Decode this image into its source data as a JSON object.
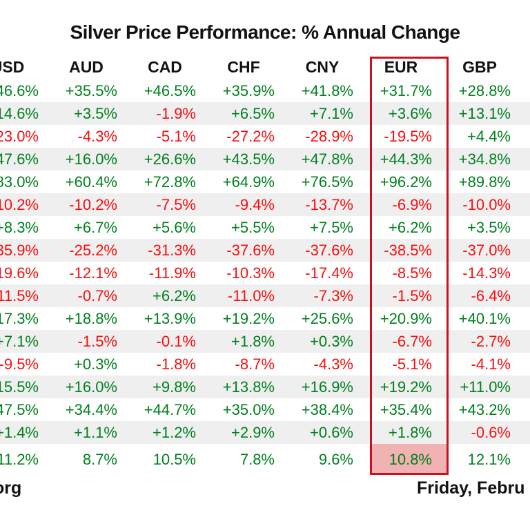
{
  "chart_data": {
    "type": "table",
    "title": "Silver Price Performance: % Annual Change",
    "columns": [
      "USD",
      "AUD",
      "CAD",
      "CHF",
      "CNY",
      "EUR",
      "GBP"
    ],
    "highlighted_column": "EUR",
    "highlight_cell": {
      "row": 16,
      "col": 5
    },
    "rows": [
      {
        "values": [
          "46.6%",
          "+35.5%",
          "+46.5%",
          "+35.9%",
          "+41.8%",
          "+31.7%",
          "+28.8%"
        ],
        "colors": [
          "g",
          "g",
          "g",
          "g",
          "g",
          "g",
          "g"
        ]
      },
      {
        "values": [
          "14.6%",
          "+3.5%",
          "-1.9%",
          "+6.5%",
          "+7.1%",
          "+3.6%",
          "+13.1%"
        ],
        "colors": [
          "g",
          "g",
          "r",
          "g",
          "g",
          "g",
          "g"
        ]
      },
      {
        "values": [
          "23.0%",
          "-4.3%",
          "-5.1%",
          "-27.2%",
          "-28.9%",
          "-19.5%",
          "+4.4%"
        ],
        "colors": [
          "r",
          "r",
          "r",
          "r",
          "r",
          "r",
          "g"
        ]
      },
      {
        "values": [
          "47.6%",
          "+16.0%",
          "+26.6%",
          "+43.5%",
          "+47.8%",
          "+44.3%",
          "+34.8%"
        ],
        "colors": [
          "g",
          "g",
          "g",
          "g",
          "g",
          "g",
          "g"
        ]
      },
      {
        "values": [
          "83.0%",
          "+60.4%",
          "+72.8%",
          "+64.9%",
          "+76.5%",
          "+96.2%",
          "+89.8%"
        ],
        "colors": [
          "g",
          "g",
          "g",
          "g",
          "g",
          "g",
          "g"
        ]
      },
      {
        "values": [
          "10.2%",
          "-10.2%",
          "-7.5%",
          "-9.4%",
          "-13.7%",
          "-6.9%",
          "-10.0%"
        ],
        "colors": [
          "r",
          "r",
          "r",
          "r",
          "r",
          "r",
          "r"
        ]
      },
      {
        "values": [
          "+8.3%",
          "+6.7%",
          "+5.6%",
          "+5.5%",
          "+7.5%",
          "+6.2%",
          "+3.5%"
        ],
        "colors": [
          "g",
          "g",
          "g",
          "g",
          "g",
          "g",
          "g"
        ]
      },
      {
        "values": [
          "35.9%",
          "-25.2%",
          "-31.3%",
          "-37.6%",
          "-37.6%",
          "-38.5%",
          "-37.0%"
        ],
        "colors": [
          "r",
          "r",
          "r",
          "r",
          "r",
          "r",
          "r"
        ]
      },
      {
        "values": [
          "19.6%",
          "-12.1%",
          "-11.9%",
          "-10.3%",
          "-17.4%",
          "-8.5%",
          "-14.3%"
        ],
        "colors": [
          "r",
          "r",
          "r",
          "r",
          "r",
          "r",
          "r"
        ]
      },
      {
        "values": [
          "11.5%",
          "-0.7%",
          "+6.2%",
          "-11.0%",
          "-7.3%",
          "-1.5%",
          "-6.4%"
        ],
        "colors": [
          "r",
          "r",
          "g",
          "r",
          "r",
          "r",
          "r"
        ]
      },
      {
        "values": [
          "17.3%",
          "+18.8%",
          "+13.9%",
          "+19.2%",
          "+25.6%",
          "+20.9%",
          "+40.1%"
        ],
        "colors": [
          "g",
          "g",
          "g",
          "g",
          "g",
          "g",
          "g"
        ]
      },
      {
        "values": [
          "+7.1%",
          "-1.5%",
          "-0.1%",
          "+1.8%",
          "+0.3%",
          "-6.7%",
          "-2.7%"
        ],
        "colors": [
          "g",
          "r",
          "r",
          "g",
          "g",
          "r",
          "r"
        ]
      },
      {
        "values": [
          "-9.5%",
          "+0.3%",
          "-1.8%",
          "-8.7%",
          "-4.3%",
          "-5.1%",
          "-4.1%"
        ],
        "colors": [
          "r",
          "g",
          "r",
          "r",
          "r",
          "r",
          "r"
        ]
      },
      {
        "values": [
          "15.5%",
          "+16.0%",
          "+9.8%",
          "+13.8%",
          "+16.9%",
          "+19.2%",
          "+11.0%"
        ],
        "colors": [
          "g",
          "g",
          "g",
          "g",
          "g",
          "g",
          "g"
        ]
      },
      {
        "values": [
          "47.5%",
          "+34.4%",
          "+44.7%",
          "+35.0%",
          "+38.4%",
          "+35.4%",
          "+43.2%"
        ],
        "colors": [
          "g",
          "g",
          "g",
          "g",
          "g",
          "g",
          "g"
        ]
      },
      {
        "values": [
          "+1.4%",
          "+1.1%",
          "+1.2%",
          "+2.9%",
          "+0.6%",
          "+1.8%",
          "-0.6%"
        ],
        "colors": [
          "g",
          "g",
          "g",
          "g",
          "g",
          "g",
          "r"
        ]
      },
      {
        "values": [
          "11.2%",
          "8.7%",
          "10.5%",
          "7.8%",
          "9.6%",
          "10.8%",
          "12.1%"
        ],
        "colors": [
          "g",
          "g",
          "g",
          "g",
          "g",
          "g",
          "g"
        ]
      }
    ]
  },
  "footer": {
    "left": "org",
    "right": "Friday, Febru"
  },
  "colors": {
    "positive": "#00801e",
    "negative": "#f90d0d",
    "stripe": "#efefef",
    "highlight_box": "#cc1020",
    "highlight_cell_bg": "#f0b2b2"
  }
}
